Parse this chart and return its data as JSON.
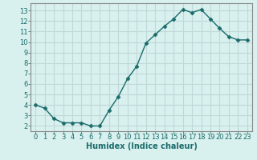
{
  "x": [
    0,
    1,
    2,
    3,
    4,
    5,
    6,
    7,
    8,
    9,
    10,
    11,
    12,
    13,
    14,
    15,
    16,
    17,
    18,
    19,
    20,
    21,
    22,
    23
  ],
  "y": [
    4.0,
    3.7,
    2.7,
    2.3,
    2.3,
    2.3,
    2.0,
    2.0,
    3.5,
    4.8,
    6.5,
    7.7,
    9.9,
    10.7,
    11.5,
    12.2,
    13.1,
    12.8,
    13.1,
    12.2,
    11.3,
    10.5,
    10.2,
    10.2
  ],
  "xlabel": "Humidex (Indice chaleur)",
  "ylim": [
    1.5,
    13.7
  ],
  "xlim": [
    -0.5,
    23.5
  ],
  "yticks": [
    2,
    3,
    4,
    5,
    6,
    7,
    8,
    9,
    10,
    11,
    12,
    13
  ],
  "xticks": [
    0,
    1,
    2,
    3,
    4,
    5,
    6,
    7,
    8,
    9,
    10,
    11,
    12,
    13,
    14,
    15,
    16,
    17,
    18,
    19,
    20,
    21,
    22,
    23
  ],
  "line_color": "#1a6b6b",
  "marker": "D",
  "marker_size": 2.5,
  "bg_color": "#d8f0ee",
  "grid_color": "#c0d8d8",
  "line_width": 1.0,
  "xlabel_fontsize": 7,
  "tick_fontsize": 6,
  "spine_color": "#888888"
}
